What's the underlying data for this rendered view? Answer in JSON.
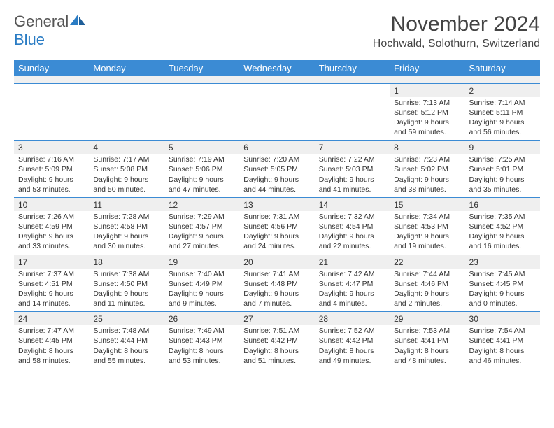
{
  "logo": {
    "word1": "General",
    "word2": "Blue"
  },
  "title": "November 2024",
  "location": "Hochwald, Solothurn, Switzerland",
  "colors": {
    "header_bg": "#3b8bd4",
    "header_text": "#ffffff",
    "row_border": "#3b8bd4",
    "daynum_bg": "#efefef",
    "logo_gray": "#555555",
    "logo_blue": "#2a7cc4"
  },
  "day_headers": [
    "Sunday",
    "Monday",
    "Tuesday",
    "Wednesday",
    "Thursday",
    "Friday",
    "Saturday"
  ],
  "weeks": [
    [
      null,
      null,
      null,
      null,
      null,
      {
        "n": "1",
        "sr": "7:13 AM",
        "ss": "5:12 PM",
        "dl": "9 hours and 59 minutes."
      },
      {
        "n": "2",
        "sr": "7:14 AM",
        "ss": "5:11 PM",
        "dl": "9 hours and 56 minutes."
      }
    ],
    [
      {
        "n": "3",
        "sr": "7:16 AM",
        "ss": "5:09 PM",
        "dl": "9 hours and 53 minutes."
      },
      {
        "n": "4",
        "sr": "7:17 AM",
        "ss": "5:08 PM",
        "dl": "9 hours and 50 minutes."
      },
      {
        "n": "5",
        "sr": "7:19 AM",
        "ss": "5:06 PM",
        "dl": "9 hours and 47 minutes."
      },
      {
        "n": "6",
        "sr": "7:20 AM",
        "ss": "5:05 PM",
        "dl": "9 hours and 44 minutes."
      },
      {
        "n": "7",
        "sr": "7:22 AM",
        "ss": "5:03 PM",
        "dl": "9 hours and 41 minutes."
      },
      {
        "n": "8",
        "sr": "7:23 AM",
        "ss": "5:02 PM",
        "dl": "9 hours and 38 minutes."
      },
      {
        "n": "9",
        "sr": "7:25 AM",
        "ss": "5:01 PM",
        "dl": "9 hours and 35 minutes."
      }
    ],
    [
      {
        "n": "10",
        "sr": "7:26 AM",
        "ss": "4:59 PM",
        "dl": "9 hours and 33 minutes."
      },
      {
        "n": "11",
        "sr": "7:28 AM",
        "ss": "4:58 PM",
        "dl": "9 hours and 30 minutes."
      },
      {
        "n": "12",
        "sr": "7:29 AM",
        "ss": "4:57 PM",
        "dl": "9 hours and 27 minutes."
      },
      {
        "n": "13",
        "sr": "7:31 AM",
        "ss": "4:56 PM",
        "dl": "9 hours and 24 minutes."
      },
      {
        "n": "14",
        "sr": "7:32 AM",
        "ss": "4:54 PM",
        "dl": "9 hours and 22 minutes."
      },
      {
        "n": "15",
        "sr": "7:34 AM",
        "ss": "4:53 PM",
        "dl": "9 hours and 19 minutes."
      },
      {
        "n": "16",
        "sr": "7:35 AM",
        "ss": "4:52 PM",
        "dl": "9 hours and 16 minutes."
      }
    ],
    [
      {
        "n": "17",
        "sr": "7:37 AM",
        "ss": "4:51 PM",
        "dl": "9 hours and 14 minutes."
      },
      {
        "n": "18",
        "sr": "7:38 AM",
        "ss": "4:50 PM",
        "dl": "9 hours and 11 minutes."
      },
      {
        "n": "19",
        "sr": "7:40 AM",
        "ss": "4:49 PM",
        "dl": "9 hours and 9 minutes."
      },
      {
        "n": "20",
        "sr": "7:41 AM",
        "ss": "4:48 PM",
        "dl": "9 hours and 7 minutes."
      },
      {
        "n": "21",
        "sr": "7:42 AM",
        "ss": "4:47 PM",
        "dl": "9 hours and 4 minutes."
      },
      {
        "n": "22",
        "sr": "7:44 AM",
        "ss": "4:46 PM",
        "dl": "9 hours and 2 minutes."
      },
      {
        "n": "23",
        "sr": "7:45 AM",
        "ss": "4:45 PM",
        "dl": "9 hours and 0 minutes."
      }
    ],
    [
      {
        "n": "24",
        "sr": "7:47 AM",
        "ss": "4:45 PM",
        "dl": "8 hours and 58 minutes."
      },
      {
        "n": "25",
        "sr": "7:48 AM",
        "ss": "4:44 PM",
        "dl": "8 hours and 55 minutes."
      },
      {
        "n": "26",
        "sr": "7:49 AM",
        "ss": "4:43 PM",
        "dl": "8 hours and 53 minutes."
      },
      {
        "n": "27",
        "sr": "7:51 AM",
        "ss": "4:42 PM",
        "dl": "8 hours and 51 minutes."
      },
      {
        "n": "28",
        "sr": "7:52 AM",
        "ss": "4:42 PM",
        "dl": "8 hours and 49 minutes."
      },
      {
        "n": "29",
        "sr": "7:53 AM",
        "ss": "4:41 PM",
        "dl": "8 hours and 48 minutes."
      },
      {
        "n": "30",
        "sr": "7:54 AM",
        "ss": "4:41 PM",
        "dl": "8 hours and 46 minutes."
      }
    ]
  ],
  "labels": {
    "sunrise": "Sunrise:",
    "sunset": "Sunset:",
    "daylight": "Daylight:"
  }
}
